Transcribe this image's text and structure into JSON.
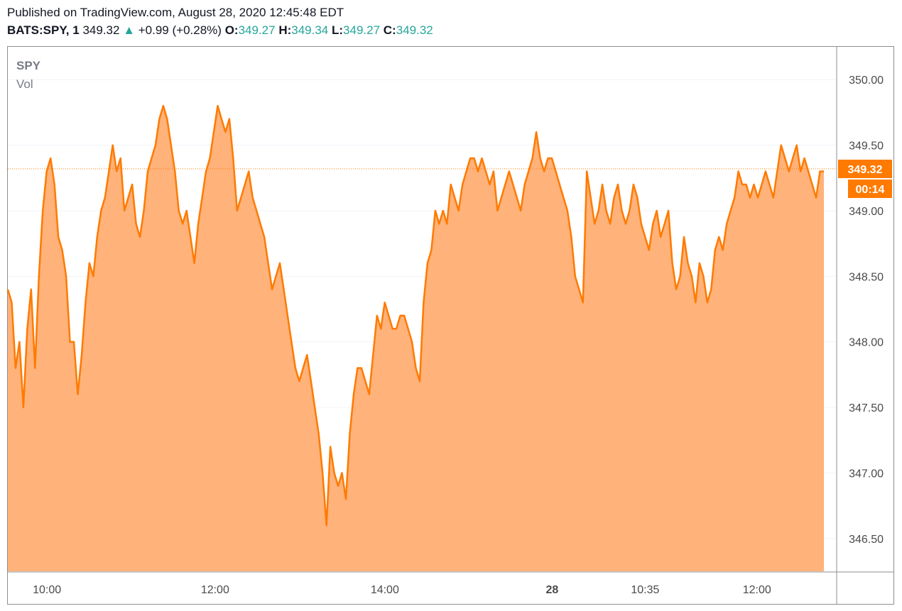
{
  "header": {
    "published": "Published on TradingView.com, August 28, 2020 12:45:48 EDT",
    "symbol": "BATS:SPY, 1",
    "last": "349.32",
    "change": "+0.99 (+0.28%)",
    "open_label": "O:",
    "open": "349.27",
    "high_label": "H:",
    "high": "349.34",
    "low_label": "L:",
    "low": "349.27",
    "close_label": "C:",
    "close": "349.32",
    "up_arrow": "▲"
  },
  "legend": {
    "symbol": "SPY",
    "volume": "Vol"
  },
  "price_tag": {
    "price": "349.32",
    "countdown": "00:14"
  },
  "colors": {
    "line": "#ff7a00",
    "fill": "#ffb27a",
    "up": "#26a69a",
    "tag": "#ff7a00"
  },
  "chart_data": {
    "type": "area",
    "title": "SPY",
    "yticks": [
      "346.50",
      "347.00",
      "347.50",
      "348.00",
      "348.50",
      "349.00",
      "349.50",
      "350.00"
    ],
    "ytick_values": [
      346.5,
      347.0,
      347.5,
      348.0,
      348.5,
      349.0,
      349.5,
      350.0
    ],
    "xticks": [
      "10:00",
      "12:00",
      "14:00",
      "28",
      "10:35",
      "12:00"
    ],
    "xtick_index": [
      0.048,
      0.254,
      0.462,
      0.667,
      0.781,
      0.918
    ],
    "ylim": [
      346.25,
      350.25
    ],
    "current_price": 349.32,
    "series": [
      {
        "values": [
          348.4,
          348.3,
          347.8,
          348.0,
          347.5,
          348.1,
          348.4,
          347.8,
          348.5,
          349.0,
          349.3,
          349.4,
          349.2,
          348.8,
          348.7,
          348.5,
          348.0,
          348.0,
          347.6,
          347.9,
          348.3,
          348.6,
          348.5,
          348.8,
          349.0,
          349.1,
          349.3,
          349.5,
          349.3,
          349.4,
          349.0,
          349.1,
          349.2,
          348.9,
          348.8,
          349.0,
          349.3,
          349.4,
          349.5,
          349.7,
          349.8,
          349.7,
          349.5,
          349.3,
          349.0,
          348.9,
          349.0,
          348.8,
          348.6,
          348.9,
          349.1,
          349.3,
          349.4,
          349.6,
          349.8,
          349.7,
          349.6,
          349.7,
          349.4,
          349.0,
          349.1,
          349.2,
          349.3,
          349.1,
          349.0,
          348.9,
          348.8,
          348.6,
          348.4,
          348.5,
          348.6,
          348.4,
          348.2,
          348.0,
          347.8,
          347.7,
          347.8,
          347.9,
          347.7,
          347.5,
          347.3,
          347.0,
          346.6,
          347.2,
          347.0,
          346.9,
          347.0,
          346.8,
          347.3,
          347.6,
          347.8,
          347.8,
          347.7,
          347.6,
          347.9,
          348.2,
          348.1,
          348.3,
          348.2,
          348.1,
          348.1,
          348.2,
          348.2,
          348.1,
          348.0,
          347.8,
          347.7,
          348.3,
          348.6,
          348.7,
          349.0,
          348.9,
          349.0,
          348.9,
          349.2,
          349.1,
          349.0,
          349.2,
          349.3,
          349.4,
          349.4,
          349.3,
          349.4,
          349.3,
          349.2,
          349.3,
          349.0,
          349.1,
          349.2,
          349.3,
          349.2,
          349.1,
          349.0,
          349.2,
          349.3,
          349.4,
          349.6,
          349.4,
          349.3,
          349.4,
          349.4,
          349.3,
          349.2,
          349.1,
          349.0,
          348.8,
          348.5,
          348.4,
          348.3,
          349.3,
          349.1,
          348.9,
          349.0,
          349.2,
          349.0,
          348.9,
          349.1,
          349.2,
          349.0,
          348.9,
          349.0,
          349.2,
          349.1,
          348.9,
          348.8,
          348.7,
          348.9,
          349.0,
          348.8,
          348.9,
          349.0,
          348.6,
          348.4,
          348.5,
          348.8,
          348.6,
          348.5,
          348.3,
          348.6,
          348.5,
          348.3,
          348.4,
          348.7,
          348.8,
          348.7,
          348.9,
          349.0,
          349.1,
          349.3,
          349.2,
          349.2,
          349.1,
          349.2,
          349.1,
          349.2,
          349.3,
          349.2,
          349.1,
          349.3,
          349.5,
          349.4,
          349.3,
          349.4,
          349.5,
          349.3,
          349.4,
          349.3,
          349.2,
          349.1,
          349.3,
          349.3
        ]
      }
    ]
  }
}
